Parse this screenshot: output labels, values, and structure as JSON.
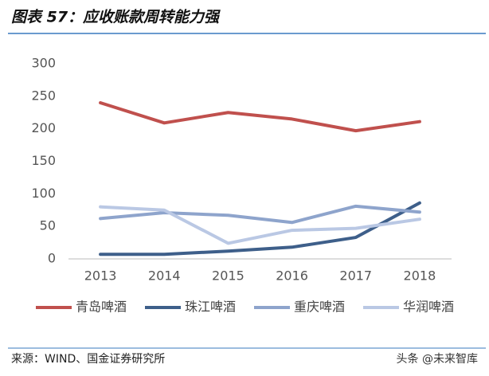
{
  "chart_data": {
    "type": "line",
    "title": "图表 57：应收账款周转能力强",
    "categories": [
      "2013",
      "2014",
      "2015",
      "2016",
      "2017",
      "2018"
    ],
    "series": [
      {
        "name": "青岛啤酒",
        "color": "#c0504d",
        "values": [
          240,
          209,
          225,
          215,
          197,
          211
        ]
      },
      {
        "name": "珠江啤酒",
        "color": "#3e5f8a",
        "values": [
          7,
          7,
          12,
          18,
          33,
          86
        ]
      },
      {
        "name": "重庆啤酒",
        "color": "#8ea4cc",
        "values": [
          62,
          71,
          67,
          56,
          81,
          72
        ]
      },
      {
        "name": "华润啤酒",
        "color": "#bac8e4",
        "values": [
          80,
          75,
          24,
          44,
          47,
          61
        ]
      }
    ],
    "ylim": [
      0,
      300
    ],
    "yticks": [
      0,
      50,
      100,
      150,
      200,
      250,
      300
    ],
    "grid": false,
    "legend": "bottom"
  },
  "source": "来源：WIND、国金证券研究所",
  "watermark": "头条 @未来智库"
}
